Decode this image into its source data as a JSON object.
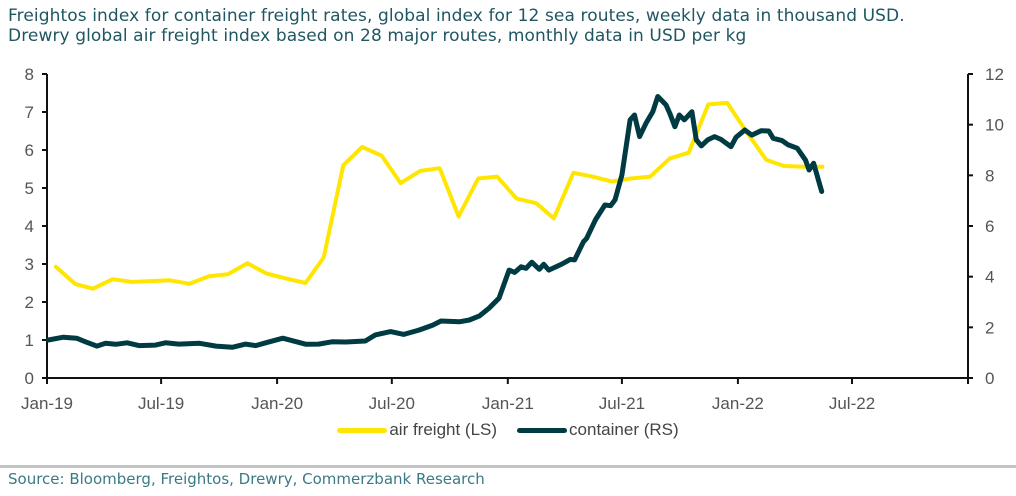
{
  "header": {
    "title_line1": "Freightos index for container freight rates, global index for 12 sea routes, weekly data in thousand USD.",
    "title_line2": "Drewry global air freight index based on 28 major routes, monthly data in USD per kg"
  },
  "footer": {
    "source": "Source: Bloomberg, Freightos, Drewry, Commerzbank Research"
  },
  "chart_data": {
    "type": "line",
    "x_range": [
      "2019-01-01",
      "2023-01-01"
    ],
    "x_ticks": [
      {
        "date": "2019-01-01",
        "label": "Jan-19"
      },
      {
        "date": "2019-07-01",
        "label": "Jul-19"
      },
      {
        "date": "2020-01-01",
        "label": "Jan-20"
      },
      {
        "date": "2020-07-01",
        "label": "Jul-20"
      },
      {
        "date": "2021-01-01",
        "label": "Jan-21"
      },
      {
        "date": "2021-07-01",
        "label": "Jul-21"
      },
      {
        "date": "2022-01-01",
        "label": "Jan-22"
      },
      {
        "date": "2022-07-01",
        "label": "Jul-22"
      },
      {
        "date": "2023-01-01",
        "label": ""
      }
    ],
    "y_left": {
      "range": [
        0,
        8
      ],
      "ticks": [
        "0",
        "1",
        "2",
        "3",
        "4",
        "5",
        "6",
        "7",
        "8"
      ]
    },
    "y_right": {
      "range": [
        0,
        12
      ],
      "ticks": [
        "0",
        "2",
        "4",
        "6",
        "8",
        "10",
        "12"
      ]
    },
    "grid": false,
    "legend": "bottom",
    "series": [
      {
        "name": "air freight (LS)",
        "axis": "left",
        "color": "#FFE600",
        "points": [
          [
            "2019-01-15",
            2.93
          ],
          [
            "2019-02-15",
            2.47
          ],
          [
            "2019-03-15",
            2.35
          ],
          [
            "2019-04-15",
            2.6
          ],
          [
            "2019-05-15",
            2.53
          ],
          [
            "2019-06-15",
            2.55
          ],
          [
            "2019-07-15",
            2.57
          ],
          [
            "2019-08-15",
            2.48
          ],
          [
            "2019-09-15",
            2.68
          ],
          [
            "2019-10-15",
            2.73
          ],
          [
            "2019-11-15",
            3.02
          ],
          [
            "2019-12-15",
            2.75
          ],
          [
            "2020-01-15",
            2.62
          ],
          [
            "2020-02-15",
            2.5
          ],
          [
            "2020-03-15",
            3.17
          ],
          [
            "2020-04-15",
            5.6
          ],
          [
            "2020-05-15",
            6.08
          ],
          [
            "2020-06-15",
            5.85
          ],
          [
            "2020-07-15",
            5.13
          ],
          [
            "2020-08-15",
            5.45
          ],
          [
            "2020-09-15",
            5.52
          ],
          [
            "2020-10-15",
            4.25
          ],
          [
            "2020-11-15",
            5.25
          ],
          [
            "2020-12-15",
            5.3
          ],
          [
            "2021-01-15",
            4.72
          ],
          [
            "2021-02-15",
            4.6
          ],
          [
            "2021-03-15",
            4.2
          ],
          [
            "2021-04-15",
            5.4
          ],
          [
            "2021-05-15",
            5.3
          ],
          [
            "2021-06-15",
            5.17
          ],
          [
            "2021-07-15",
            5.25
          ],
          [
            "2021-08-15",
            5.3
          ],
          [
            "2021-09-15",
            5.78
          ],
          [
            "2021-10-15",
            5.93
          ],
          [
            "2021-11-15",
            7.2
          ],
          [
            "2021-12-15",
            7.24
          ],
          [
            "2022-01-15",
            6.47
          ],
          [
            "2022-02-15",
            5.74
          ],
          [
            "2022-03-15",
            5.58
          ],
          [
            "2022-04-15",
            5.56
          ],
          [
            "2022-05-15",
            5.56
          ]
        ]
      },
      {
        "name": "container (RS)",
        "axis": "right",
        "color": "#003B44",
        "points": [
          [
            "2019-01-03",
            1.5
          ],
          [
            "2019-01-27",
            1.61
          ],
          [
            "2019-02-17",
            1.57
          ],
          [
            "2019-03-03",
            1.43
          ],
          [
            "2019-03-21",
            1.26
          ],
          [
            "2019-04-04",
            1.37
          ],
          [
            "2019-04-20",
            1.33
          ],
          [
            "2019-05-08",
            1.39
          ],
          [
            "2019-05-27",
            1.28
          ],
          [
            "2019-06-22",
            1.3
          ],
          [
            "2019-07-08",
            1.39
          ],
          [
            "2019-07-29",
            1.34
          ],
          [
            "2019-08-31",
            1.37
          ],
          [
            "2019-09-26",
            1.26
          ],
          [
            "2019-10-22",
            1.21
          ],
          [
            "2019-11-12",
            1.34
          ],
          [
            "2019-11-28",
            1.28
          ],
          [
            "2019-12-14",
            1.39
          ],
          [
            "2020-01-10",
            1.57
          ],
          [
            "2020-02-01",
            1.43
          ],
          [
            "2020-02-16",
            1.33
          ],
          [
            "2020-03-07",
            1.34
          ],
          [
            "2020-03-28",
            1.43
          ],
          [
            "2020-04-19",
            1.42
          ],
          [
            "2020-05-20",
            1.46
          ],
          [
            "2020-06-05",
            1.7
          ],
          [
            "2020-06-29",
            1.83
          ],
          [
            "2020-07-20",
            1.72
          ],
          [
            "2020-08-13",
            1.89
          ],
          [
            "2020-09-04",
            2.09
          ],
          [
            "2020-09-17",
            2.25
          ],
          [
            "2020-10-16",
            2.22
          ],
          [
            "2020-11-01",
            2.29
          ],
          [
            "2020-11-17",
            2.45
          ],
          [
            "2020-12-02",
            2.75
          ],
          [
            "2020-12-18",
            3.15
          ],
          [
            "2021-01-03",
            4.26
          ],
          [
            "2021-01-12",
            4.17
          ],
          [
            "2021-01-22",
            4.39
          ],
          [
            "2021-01-30",
            4.33
          ],
          [
            "2021-02-08",
            4.57
          ],
          [
            "2021-02-20",
            4.29
          ],
          [
            "2021-02-27",
            4.49
          ],
          [
            "2021-03-07",
            4.26
          ],
          [
            "2021-03-28",
            4.5
          ],
          [
            "2021-04-10",
            4.68
          ],
          [
            "2021-04-17",
            4.66
          ],
          [
            "2021-05-01",
            5.38
          ],
          [
            "2021-05-06",
            5.51
          ],
          [
            "2021-05-20",
            6.24
          ],
          [
            "2021-06-04",
            6.83
          ],
          [
            "2021-06-13",
            6.8
          ],
          [
            "2021-06-20",
            7.03
          ],
          [
            "2021-07-01",
            8.01
          ],
          [
            "2021-07-14",
            10.19
          ],
          [
            "2021-07-21",
            10.38
          ],
          [
            "2021-07-29",
            9.53
          ],
          [
            "2021-08-08",
            10.05
          ],
          [
            "2021-08-19",
            10.51
          ],
          [
            "2021-08-27",
            11.11
          ],
          [
            "2021-09-09",
            10.78
          ],
          [
            "2021-09-15",
            10.45
          ],
          [
            "2021-09-23",
            9.92
          ],
          [
            "2021-09-30",
            10.38
          ],
          [
            "2021-10-08",
            10.19
          ],
          [
            "2021-10-20",
            10.51
          ],
          [
            "2021-10-27",
            9.4
          ],
          [
            "2021-11-04",
            9.16
          ],
          [
            "2021-11-14",
            9.4
          ],
          [
            "2021-11-25",
            9.53
          ],
          [
            "2021-12-05",
            9.42
          ],
          [
            "2021-12-21",
            9.13
          ],
          [
            "2021-12-29",
            9.5
          ],
          [
            "2022-01-12",
            9.79
          ],
          [
            "2022-01-23",
            9.59
          ],
          [
            "2022-02-07",
            9.76
          ],
          [
            "2022-02-19",
            9.75
          ],
          [
            "2022-02-26",
            9.46
          ],
          [
            "2022-03-12",
            9.37
          ],
          [
            "2022-03-22",
            9.2
          ],
          [
            "2022-04-05",
            9.07
          ],
          [
            "2022-04-18",
            8.61
          ],
          [
            "2022-04-24",
            8.21
          ],
          [
            "2022-05-01",
            8.48
          ],
          [
            "2022-05-14",
            7.36
          ]
        ]
      }
    ]
  }
}
